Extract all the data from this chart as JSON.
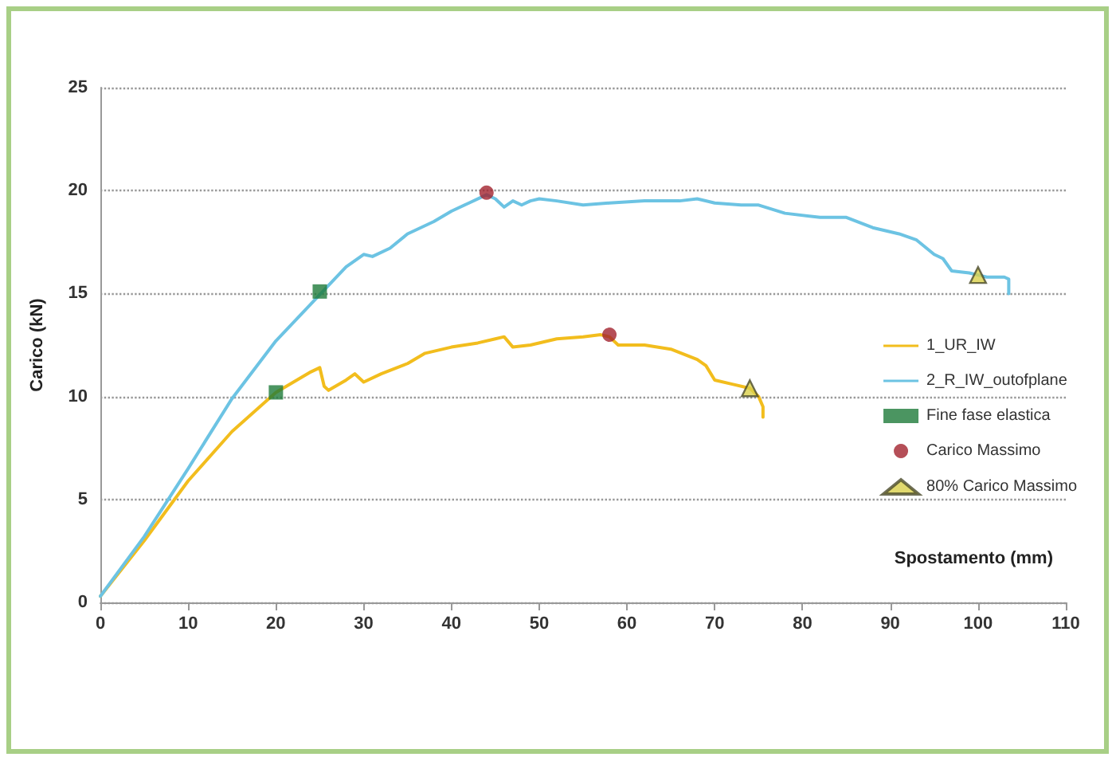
{
  "chart_data": {
    "type": "line",
    "xlabel": "Spostamento (mm)",
    "ylabel": "Carico (kN)",
    "xlim": [
      0,
      110
    ],
    "xticks": [
      0,
      10,
      20,
      30,
      40,
      50,
      60,
      70,
      80,
      90,
      100,
      110
    ],
    "ylim": [
      0,
      25
    ],
    "yticks": [
      0,
      5,
      10,
      15,
      20,
      25
    ],
    "grid": "y",
    "legend": "right",
    "marker": "none",
    "line_style": "solid",
    "series": [
      {
        "name": "1_UR_IW",
        "color": "#f2bd1d",
        "x": [
          0,
          5,
          10,
          15,
          20,
          22,
          24,
          25,
          25.5,
          26,
          28,
          29,
          30,
          32,
          35,
          37,
          40,
          43,
          45,
          46,
          47,
          49,
          52,
          55,
          57,
          58,
          59,
          62,
          65,
          68,
          69,
          70,
          72,
          74,
          75,
          75.5,
          75.5
        ],
        "values": [
          0.3,
          3,
          5.9,
          8.3,
          10.2,
          10.7,
          11.2,
          11.4,
          10.5,
          10.3,
          10.8,
          11.1,
          10.7,
          11.1,
          11.6,
          12.1,
          12.4,
          12.6,
          12.8,
          12.9,
          12.4,
          12.5,
          12.8,
          12.9,
          13,
          12.9,
          12.5,
          12.5,
          12.3,
          11.8,
          11.5,
          10.8,
          10.6,
          10.4,
          10,
          9.5,
          9
        ]
      },
      {
        "name": "2_R_IW_outofplane",
        "color": "#6cc3e3",
        "x": [
          0,
          5,
          10,
          15,
          20,
          28,
          30,
          31,
          33,
          35,
          38,
          40,
          42,
          44,
          45,
          46,
          47,
          48,
          49,
          50,
          52,
          55,
          58,
          62,
          66,
          68,
          70,
          73,
          75,
          78,
          82,
          85,
          88,
          91,
          93,
          95,
          96,
          97,
          99,
          100,
          101,
          103,
          103.5,
          103.5
        ],
        "values": [
          0.3,
          3.2,
          6.5,
          9.9,
          12.7,
          16.3,
          16.9,
          16.8,
          17.2,
          17.9,
          18.5,
          19,
          19.4,
          19.8,
          19.6,
          19.2,
          19.5,
          19.3,
          19.5,
          19.6,
          19.5,
          19.3,
          19.4,
          19.5,
          19.5,
          19.6,
          19.4,
          19.3,
          19.3,
          18.9,
          18.7,
          18.7,
          18.2,
          17.9,
          17.6,
          16.9,
          16.7,
          16.1,
          16,
          15.9,
          15.8,
          15.8,
          15.7,
          15
        ]
      },
      {
        "name": "Fine fase elastica",
        "type": "scatter",
        "marker": "square",
        "color": "#1e7a3a",
        "x": [
          20,
          25
        ],
        "values": [
          10.2,
          15.1
        ]
      },
      {
        "name": "Carico Massimo",
        "type": "scatter",
        "marker": "circle",
        "color": "#a3232e",
        "x": [
          44,
          58
        ],
        "values": [
          19.9,
          13
        ]
      },
      {
        "name": "80% Carico Massimo",
        "type": "scatter",
        "marker": "triangle",
        "color": "#d9cf4a",
        "x": [
          74,
          100
        ],
        "values": [
          10.4,
          15.9
        ]
      }
    ]
  }
}
